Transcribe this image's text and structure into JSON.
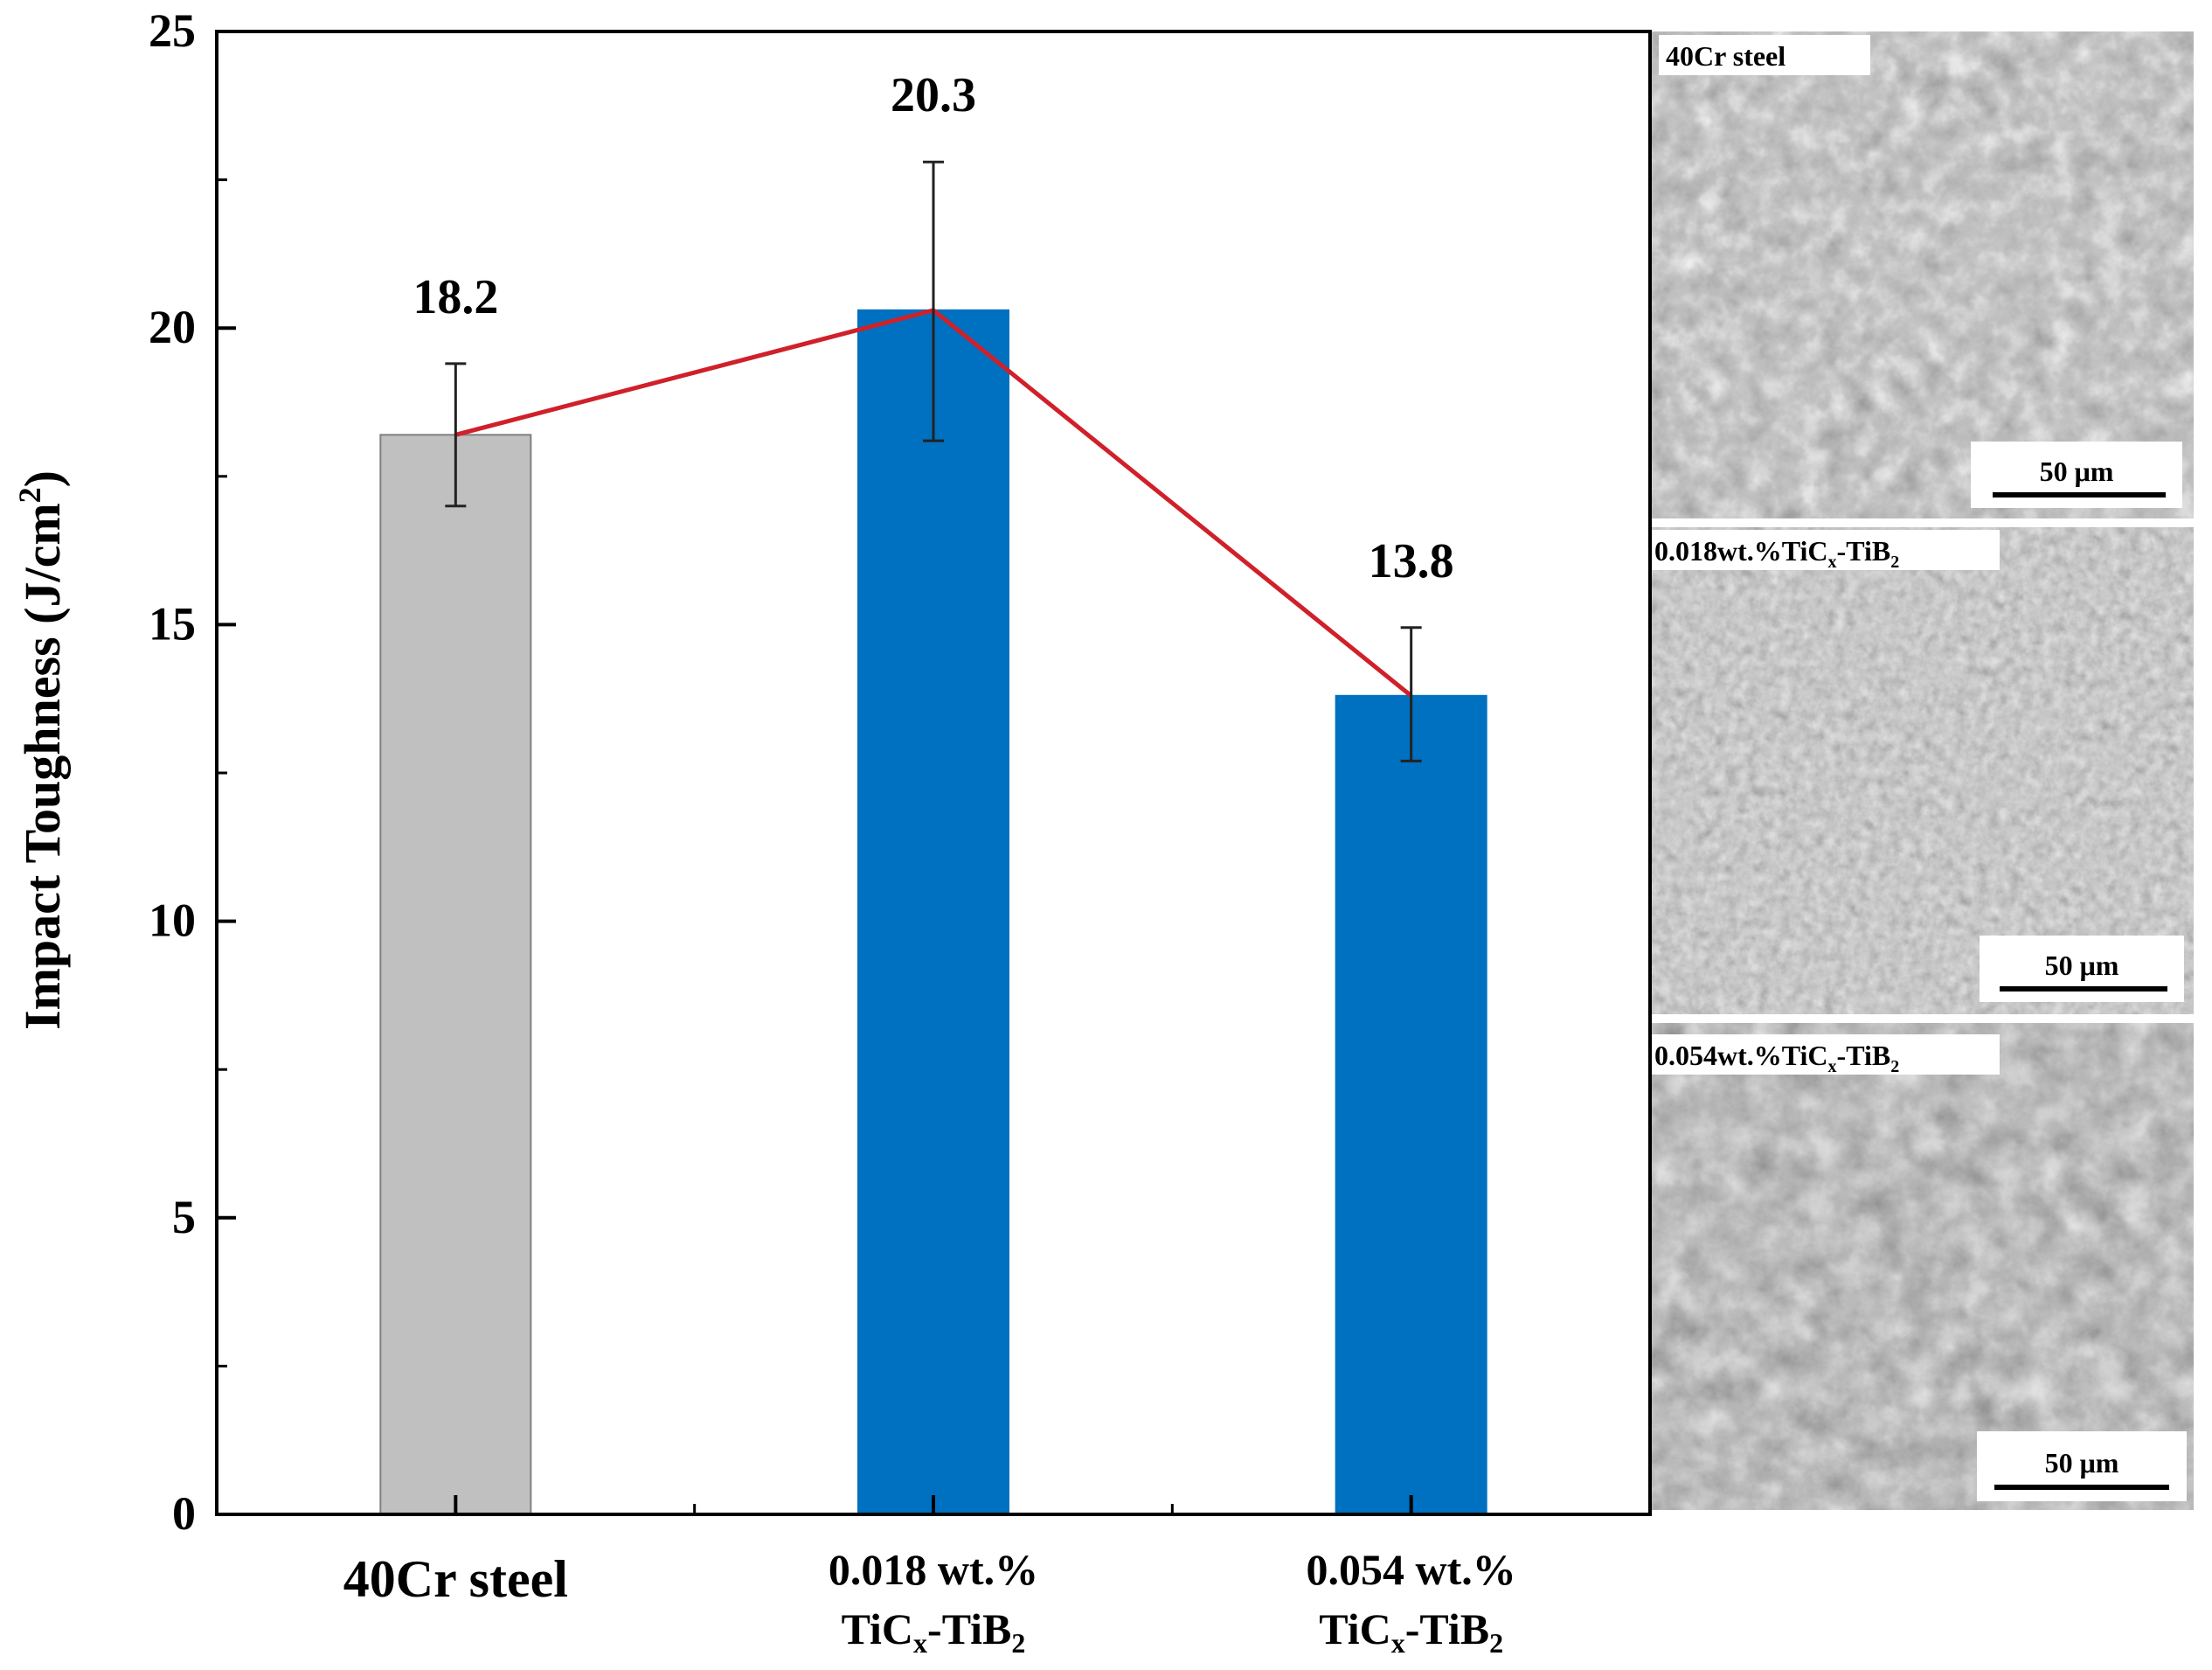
{
  "chart_data": {
    "type": "bar",
    "ylabel": "Impact Toughness (J/cm²)",
    "ylabel_parts": {
      "main": "Impact Toughness (J/cm",
      "sup": "2",
      "close": ")"
    },
    "ylim": [
      0,
      25
    ],
    "yticks": [
      0,
      5,
      10,
      15,
      20,
      25
    ],
    "ytick_labels": [
      "0",
      "5",
      "10",
      "15",
      "20",
      "25"
    ],
    "minor_y_step": 2.5,
    "grid": false,
    "categories": [
      {
        "line1": "40Cr steel",
        "line2": ""
      },
      {
        "line1": "0.018 wt.%",
        "line2_a": "TiC",
        "line2_sub1": "x",
        "line2_b": "-TiB",
        "line2_sub2": "2"
      },
      {
        "line1": "0.054 wt.%",
        "line2_a": "TiC",
        "line2_sub1": "x",
        "line2_b": "-TiB",
        "line2_sub2": "2"
      }
    ],
    "values": [
      18.2,
      20.3,
      13.8
    ],
    "value_labels": [
      "18.2",
      "20.3",
      "13.8"
    ],
    "error_high": [
      19.4,
      22.8,
      14.95
    ],
    "error_low": [
      17.0,
      18.1,
      12.7
    ],
    "bar_colors": [
      "#c0c0c0",
      "#0070c0",
      "#0070c0"
    ],
    "bar_edge_color": "#808080",
    "trend_line_color": "#d0202a",
    "trend_line": true
  },
  "sem_panels": [
    {
      "label": "40Cr steel",
      "scale_bar": "50 μm"
    },
    {
      "label_a": "0.018wt.%TiC",
      "label_sub1": "x",
      "label_b": "-TiB",
      "label_sub2": "2",
      "scale_bar": "50 μm"
    },
    {
      "label_a": "0.054wt.%TiC",
      "label_sub1": "x",
      "label_b": "-TiB",
      "label_sub2": "2",
      "scale_bar": "50 μm"
    }
  ]
}
